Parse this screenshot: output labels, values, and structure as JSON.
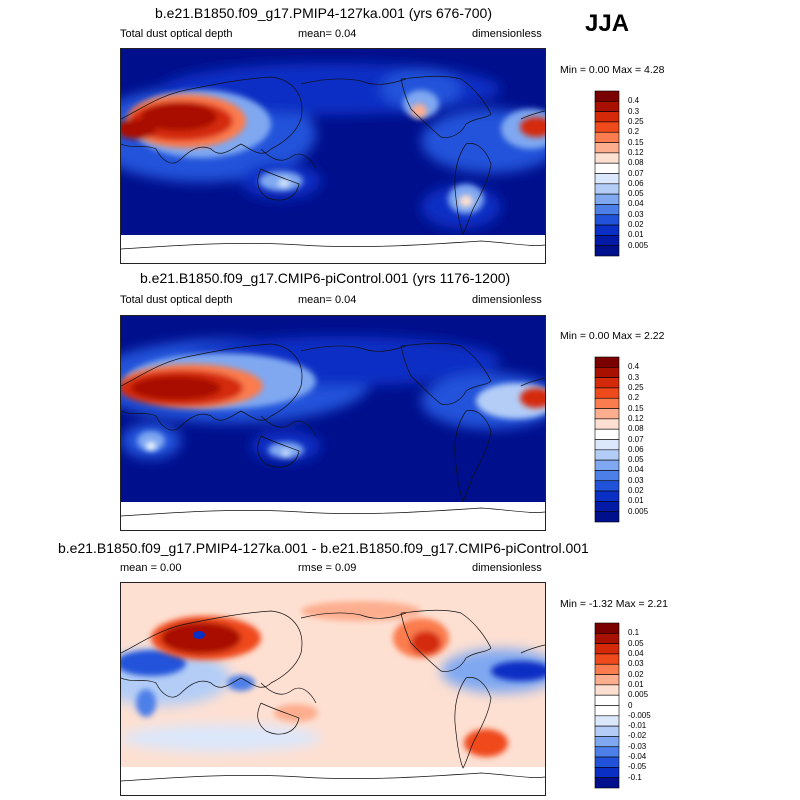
{
  "season": "JJA",
  "panels": [
    {
      "title": "b.e21.B1850.f09_g17.PMIP4-127ka.001 (yrs 676-700)",
      "left_label": "Total dust optical depth",
      "center_label": "mean=   0.04",
      "right_label": "dimensionless",
      "minmax": "Min =   0.00 Max =   4.28",
      "colorbar": {
        "labels": [
          "0.4",
          "0.3",
          "0.25",
          "0.2",
          "0.15",
          "0.12",
          "0.08",
          "0.07",
          "0.06",
          "0.05",
          "0.04",
          "0.03",
          "0.02",
          "0.01",
          "0.005"
        ],
        "colors": [
          "#7a0000",
          "#a81000",
          "#d42a0a",
          "#ef4a1c",
          "#fb7c4e",
          "#fdae8f",
          "#fee0d2",
          "#ffffff",
          "#dbe7fb",
          "#b3cdf7",
          "#7fa8f1",
          "#4d7fe8",
          "#2153da",
          "#0a2fc4",
          "#031aa6",
          "#000f8c"
        ]
      }
    },
    {
      "title": "b.e21.B1850.f09_g17.CMIP6-piControl.001 (yrs 1176-1200)",
      "left_label": "Total dust optical depth",
      "center_label": "mean=   0.04",
      "right_label": "dimensionless",
      "minmax": "Min =   0.00 Max =   2.22",
      "colorbar": {
        "labels": [
          "0.4",
          "0.3",
          "0.25",
          "0.2",
          "0.15",
          "0.12",
          "0.08",
          "0.07",
          "0.06",
          "0.05",
          "0.04",
          "0.03",
          "0.02",
          "0.01",
          "0.005"
        ],
        "colors": [
          "#7a0000",
          "#a81000",
          "#d42a0a",
          "#ef4a1c",
          "#fb7c4e",
          "#fdae8f",
          "#fee0d2",
          "#ffffff",
          "#dbe7fb",
          "#b3cdf7",
          "#7fa8f1",
          "#4d7fe8",
          "#2153da",
          "#0a2fc4",
          "#031aa6",
          "#000f8c"
        ]
      }
    },
    {
      "title": "b.e21.B1850.f09_g17.PMIP4-127ka.001 - b.e21.B1850.f09_g17.CMIP6-piControl.001",
      "left_label": "mean =   0.00",
      "center_label": "rmse =   0.09",
      "right_label": "dimensionless",
      "minmax": "Min =  -1.32 Max =   2.21",
      "colorbar": {
        "labels": [
          "0.1",
          "0.05",
          "0.04",
          "0.03",
          "0.02",
          "0.01",
          "0.005",
          "0",
          "-0.005",
          "-0.01",
          "-0.02",
          "-0.03",
          "-0.04",
          "-0.05",
          "-0.1"
        ],
        "colors": [
          "#7a0000",
          "#a81000",
          "#d42a0a",
          "#ef4a1c",
          "#fb7c4e",
          "#fdae8f",
          "#fee0d2",
          "#ffffff",
          "#ffffff",
          "#dbe7fb",
          "#b3cdf7",
          "#7fa8f1",
          "#4d7fe8",
          "#2153da",
          "#0a2fc4",
          "#000f8c"
        ]
      }
    }
  ]
}
